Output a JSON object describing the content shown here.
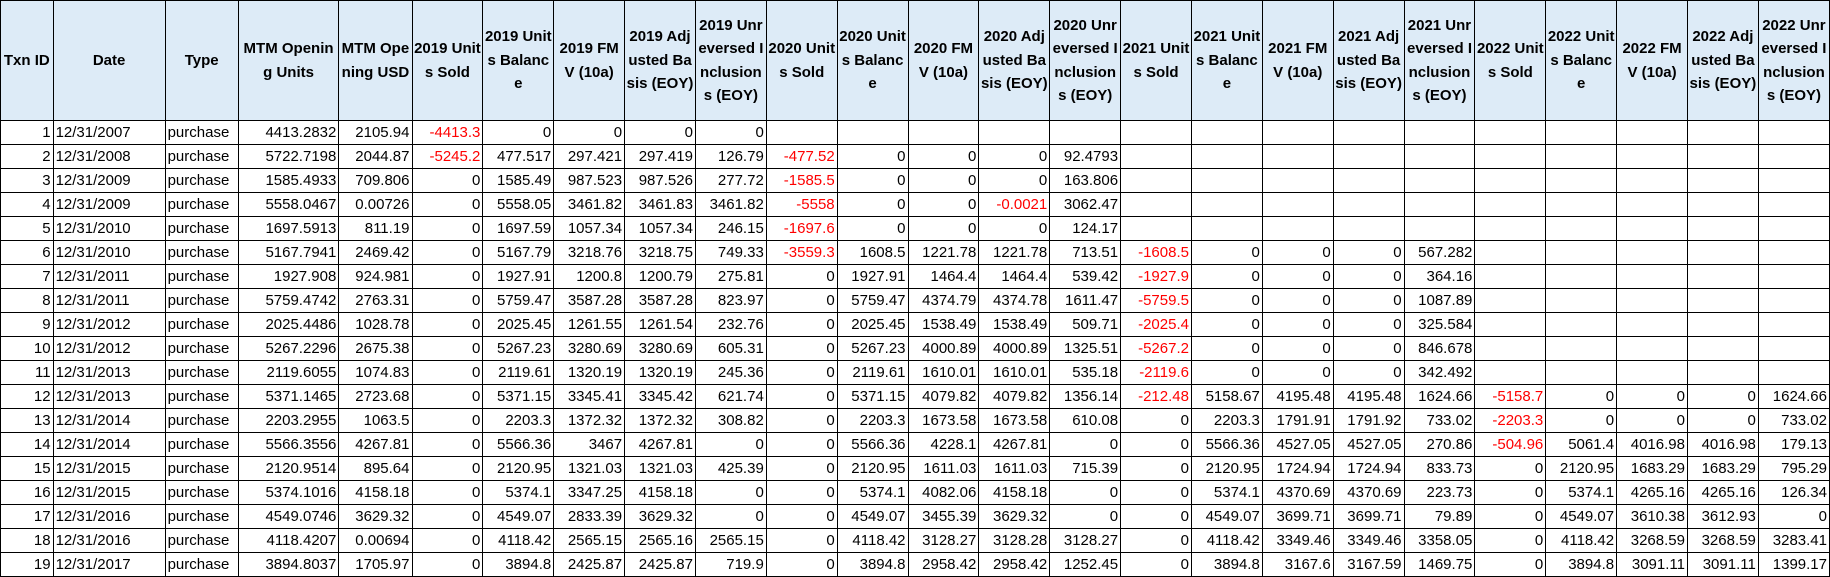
{
  "headers": [
    "Txn ID",
    "Date",
    "Type",
    "MTM Opening Units",
    "MTM Opening USD",
    "2019 Units Sold",
    "2019 Units Balance",
    "2019 FMV (10a)",
    "2019 Adjusted Basis (EOY)",
    "2019 Unreversed Inclusions (EOY)",
    "2020 Units Sold",
    "2020 Units Balance",
    "2020 FMV (10a)",
    "2020 Adjusted Basis (EOY)",
    "2020 Unreversed Inclusions (EOY)",
    "2021 Units Sold",
    "2021 Units Balance",
    "2021 FMV (10a)",
    "2021 Adjusted Basis (EOY)",
    "2021 Unreversed Inclusions (EOY)",
    "2022 Units Sold",
    "2022 Units Balance",
    "2022 FMV (10a)",
    "2022 Adjusted Basis (EOY)",
    "2022 Unreversed Inclusions (EOY)"
  ],
  "rows": [
    [
      "1",
      "12/31/2007",
      "purchase",
      "4413.2832",
      "2105.94",
      "-4413.3",
      "0",
      "0",
      "0",
      "0",
      "",
      "",
      "",
      "",
      "",
      "",
      "",
      "",
      "",
      "",
      "",
      "",
      "",
      "",
      ""
    ],
    [
      "2",
      "12/31/2008",
      "purchase",
      "5722.7198",
      "2044.87",
      "-5245.2",
      "477.517",
      "297.421",
      "297.419",
      "126.79",
      "-477.52",
      "0",
      "0",
      "0",
      "92.4793",
      "",
      "",
      "",
      "",
      "",
      "",
      "",
      "",
      "",
      ""
    ],
    [
      "3",
      "12/31/2009",
      "purchase",
      "1585.4933",
      "709.806",
      "0",
      "1585.49",
      "987.523",
      "987.526",
      "277.72",
      "-1585.5",
      "0",
      "0",
      "0",
      "163.806",
      "",
      "",
      "",
      "",
      "",
      "",
      "",
      "",
      "",
      ""
    ],
    [
      "4",
      "12/31/2009",
      "purchase",
      "5558.0467",
      "0.00726",
      "0",
      "5558.05",
      "3461.82",
      "3461.83",
      "3461.82",
      "-5558",
      "0",
      "0",
      "-0.0021",
      "3062.47",
      "",
      "",
      "",
      "",
      "",
      "",
      "",
      "",
      "",
      ""
    ],
    [
      "5",
      "12/31/2010",
      "purchase",
      "1697.5913",
      "811.19",
      "0",
      "1697.59",
      "1057.34",
      "1057.34",
      "246.15",
      "-1697.6",
      "0",
      "0",
      "0",
      "124.17",
      "",
      "",
      "",
      "",
      "",
      "",
      "",
      "",
      "",
      ""
    ],
    [
      "6",
      "12/31/2010",
      "purchase",
      "5167.7941",
      "2469.42",
      "0",
      "5167.79",
      "3218.76",
      "3218.75",
      "749.33",
      "-3559.3",
      "1608.5",
      "1221.78",
      "1221.78",
      "713.51",
      "-1608.5",
      "0",
      "0",
      "0",
      "567.282",
      "",
      "",
      "",
      "",
      ""
    ],
    [
      "7",
      "12/31/2011",
      "purchase",
      "1927.908",
      "924.981",
      "0",
      "1927.91",
      "1200.8",
      "1200.79",
      "275.81",
      "0",
      "1927.91",
      "1464.4",
      "1464.4",
      "539.42",
      "-1927.9",
      "0",
      "0",
      "0",
      "364.16",
      "",
      "",
      "",
      "",
      ""
    ],
    [
      "8",
      "12/31/2011",
      "purchase",
      "5759.4742",
      "2763.31",
      "0",
      "5759.47",
      "3587.28",
      "3587.28",
      "823.97",
      "0",
      "5759.47",
      "4374.79",
      "4374.78",
      "1611.47",
      "-5759.5",
      "0",
      "0",
      "0",
      "1087.89",
      "",
      "",
      "",
      "",
      ""
    ],
    [
      "9",
      "12/31/2012",
      "purchase",
      "2025.4486",
      "1028.78",
      "0",
      "2025.45",
      "1261.55",
      "1261.54",
      "232.76",
      "0",
      "2025.45",
      "1538.49",
      "1538.49",
      "509.71",
      "-2025.4",
      "0",
      "0",
      "0",
      "325.584",
      "",
      "",
      "",
      "",
      ""
    ],
    [
      "10",
      "12/31/2012",
      "purchase",
      "5267.2296",
      "2675.38",
      "0",
      "5267.23",
      "3280.69",
      "3280.69",
      "605.31",
      "0",
      "5267.23",
      "4000.89",
      "4000.89",
      "1325.51",
      "-5267.2",
      "0",
      "0",
      "0",
      "846.678",
      "",
      "",
      "",
      "",
      ""
    ],
    [
      "11",
      "12/31/2013",
      "purchase",
      "2119.6055",
      "1074.83",
      "0",
      "2119.61",
      "1320.19",
      "1320.19",
      "245.36",
      "0",
      "2119.61",
      "1610.01",
      "1610.01",
      "535.18",
      "-2119.6",
      "0",
      "0",
      "0",
      "342.492",
      "",
      "",
      "",
      "",
      ""
    ],
    [
      "12",
      "12/31/2013",
      "purchase",
      "5371.1465",
      "2723.68",
      "0",
      "5371.15",
      "3345.41",
      "3345.42",
      "621.74",
      "0",
      "5371.15",
      "4079.82",
      "4079.82",
      "1356.14",
      "-212.48",
      "5158.67",
      "4195.48",
      "4195.48",
      "1624.66",
      "-5158.7",
      "0",
      "0",
      "0",
      "1624.66"
    ],
    [
      "13",
      "12/31/2014",
      "purchase",
      "2203.2955",
      "1063.5",
      "0",
      "2203.3",
      "1372.32",
      "1372.32",
      "308.82",
      "0",
      "2203.3",
      "1673.58",
      "1673.58",
      "610.08",
      "0",
      "2203.3",
      "1791.91",
      "1791.92",
      "733.02",
      "-2203.3",
      "0",
      "0",
      "0",
      "733.02"
    ],
    [
      "14",
      "12/31/2014",
      "purchase",
      "5566.3556",
      "4267.81",
      "0",
      "5566.36",
      "3467",
      "4267.81",
      "0",
      "0",
      "5566.36",
      "4228.1",
      "4267.81",
      "0",
      "0",
      "5566.36",
      "4527.05",
      "4527.05",
      "270.86",
      "-504.96",
      "5061.4",
      "4016.98",
      "4016.98",
      "179.13"
    ],
    [
      "15",
      "12/31/2015",
      "purchase",
      "2120.9514",
      "895.64",
      "0",
      "2120.95",
      "1321.03",
      "1321.03",
      "425.39",
      "0",
      "2120.95",
      "1611.03",
      "1611.03",
      "715.39",
      "0",
      "2120.95",
      "1724.94",
      "1724.94",
      "833.73",
      "0",
      "2120.95",
      "1683.29",
      "1683.29",
      "795.29"
    ],
    [
      "16",
      "12/31/2015",
      "purchase",
      "5374.1016",
      "4158.18",
      "0",
      "5374.1",
      "3347.25",
      "4158.18",
      "0",
      "0",
      "5374.1",
      "4082.06",
      "4158.18",
      "0",
      "0",
      "5374.1",
      "4370.69",
      "4370.69",
      "223.73",
      "0",
      "5374.1",
      "4265.16",
      "4265.16",
      "126.34"
    ],
    [
      "17",
      "12/31/2016",
      "purchase",
      "4549.0746",
      "3629.32",
      "0",
      "4549.07",
      "2833.39",
      "3629.32",
      "0",
      "0",
      "4549.07",
      "3455.39",
      "3629.32",
      "0",
      "0",
      "4549.07",
      "3699.71",
      "3699.71",
      "79.89",
      "0",
      "4549.07",
      "3610.38",
      "3612.93",
      "0"
    ],
    [
      "18",
      "12/31/2016",
      "purchase",
      "4118.4207",
      "0.00694",
      "0",
      "4118.42",
      "2565.15",
      "2565.16",
      "2565.15",
      "0",
      "4118.42",
      "3128.27",
      "3128.28",
      "3128.27",
      "0",
      "4118.42",
      "3349.46",
      "3349.46",
      "3358.05",
      "0",
      "4118.42",
      "3268.59",
      "3268.59",
      "3283.41"
    ],
    [
      "19",
      "12/31/2017",
      "purchase",
      "3894.8037",
      "1705.97",
      "0",
      "3894.8",
      "2425.87",
      "2425.87",
      "719.9",
      "0",
      "3894.8",
      "2958.42",
      "2958.42",
      "1252.45",
      "0",
      "3894.8",
      "3167.6",
      "3167.59",
      "1469.75",
      "0",
      "3894.8",
      "3091.11",
      "3091.11",
      "1399.17"
    ]
  ],
  "negative_color": "#FF0000",
  "header_background": "#DDEBF7"
}
